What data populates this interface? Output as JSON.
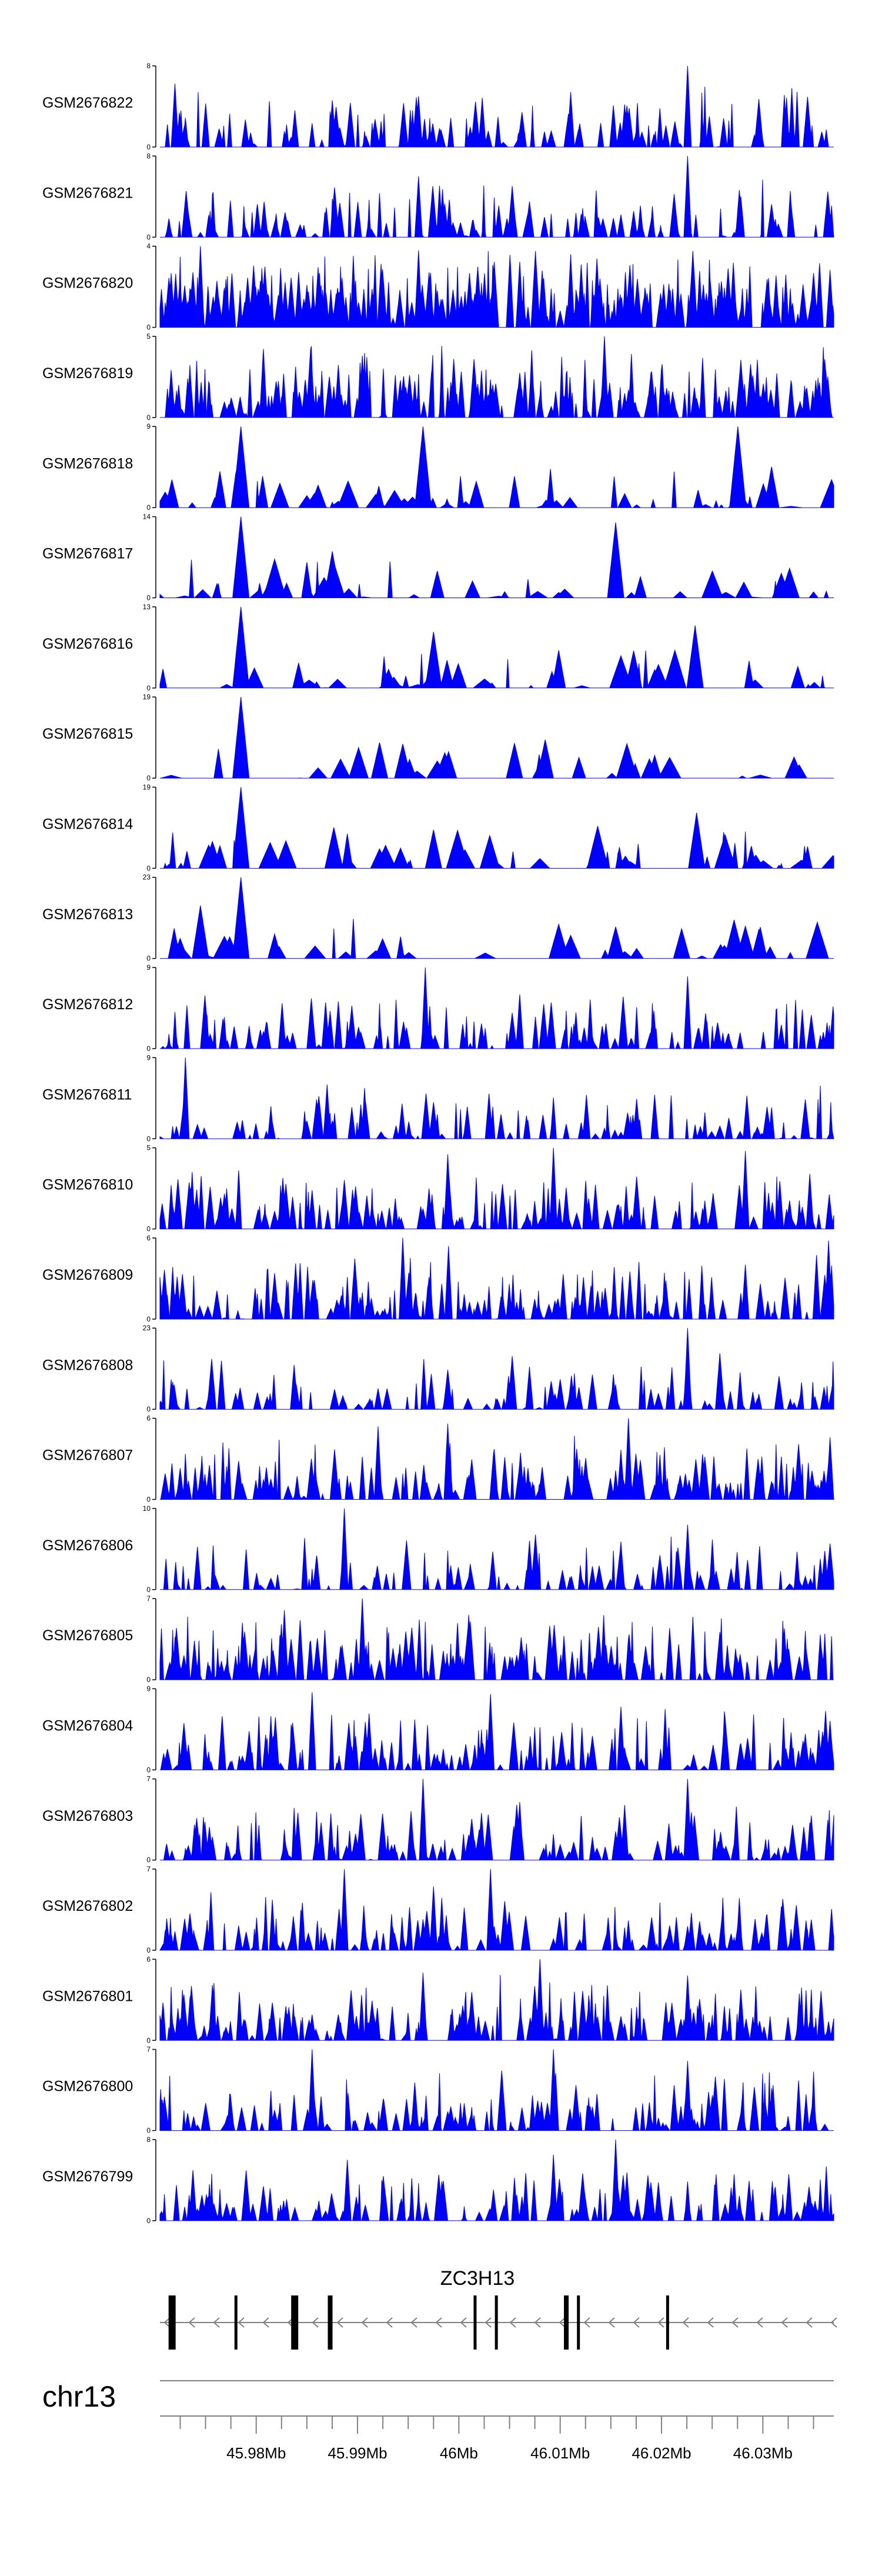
{
  "chart_data": {
    "type": "area",
    "title": "",
    "region": {
      "chromosome": "chr13",
      "start_mb": 45.9705,
      "end_mb": 46.037
    },
    "tracks": [
      {
        "name": "GSM2676822",
        "ymax": "8",
        "ymin": "0",
        "seed": 11,
        "peaks": [
          [
            46.0226,
            8
          ],
          [
            45.996,
            5
          ],
          [
            45.9875,
            4.6
          ]
        ],
        "density": 1.0,
        "base": 0.25
      },
      {
        "name": "GSM2676821",
        "ymax": "8",
        "ymin": "0",
        "seed": 23,
        "peaks": [
          [
            46.0226,
            8
          ],
          [
            45.996,
            6
          ],
          [
            46.0278,
            4
          ]
        ],
        "density": 1.0,
        "base": 0.25
      },
      {
        "name": "GSM2676820",
        "ymax": "4",
        "ymin": "0",
        "seed": 37,
        "peaks": [
          [
            45.9745,
            4
          ],
          [
            45.996,
            3.8
          ],
          [
            46.011,
            3.6
          ]
        ],
        "density": 2.6,
        "base": 0.45
      },
      {
        "name": "GSM2676819",
        "ymax": "5",
        "ymin": "0",
        "seed": 41,
        "peaks": [
          [
            46.0144,
            5
          ],
          [
            45.9905,
            3.8
          ],
          [
            45.9995,
            3.6
          ]
        ],
        "density": 1.9,
        "base": 0.35
      },
      {
        "name": "GSM2676818",
        "ymax": "9",
        "ymin": "0",
        "seed": 53,
        "peaks": [
          [
            45.9785,
            9
          ],
          [
            45.9965,
            9
          ],
          [
            46.0275,
            9
          ]
        ],
        "density": 0.45,
        "base": 0.1
      },
      {
        "name": "GSM2676817",
        "ymax": "14",
        "ymin": "0",
        "seed": 67,
        "peaks": [
          [
            45.9785,
            14
          ],
          [
            46.0155,
            13
          ],
          [
            45.9875,
            8
          ]
        ],
        "density": 0.4,
        "base": 0.08
      },
      {
        "name": "GSM2676816",
        "ymax": "13",
        "ymin": "0",
        "seed": 71,
        "peaks": [
          [
            45.9785,
            13
          ],
          [
            46.0233,
            10
          ],
          [
            45.9975,
            9
          ]
        ],
        "density": 0.4,
        "base": 0.08
      },
      {
        "name": "GSM2676815",
        "ymax": "19",
        "ymin": "0",
        "seed": 83,
        "peaks": [
          [
            45.9785,
            19
          ],
          [
            45.9945,
            8
          ],
          [
            46.0085,
            9
          ]
        ],
        "density": 0.3,
        "base": 0.06
      },
      {
        "name": "GSM2676814",
        "ymax": "19",
        "ymin": "0",
        "seed": 97,
        "peaks": [
          [
            45.9785,
            19
          ],
          [
            46.0235,
            13
          ],
          [
            45.9975,
            9
          ]
        ],
        "density": 0.5,
        "base": 0.1
      },
      {
        "name": "GSM2676813",
        "ymax": "23",
        "ymin": "0",
        "seed": 103,
        "peaks": [
          [
            45.9785,
            23
          ],
          [
            45.9745,
            15
          ],
          [
            46.0155,
            9
          ]
        ],
        "density": 0.35,
        "base": 0.06
      },
      {
        "name": "GSM2676812",
        "ymax": "9",
        "ymin": "0",
        "seed": 113,
        "peaks": [
          [
            45.9967,
            9
          ],
          [
            46.0226,
            8
          ],
          [
            46.006,
            6
          ]
        ],
        "density": 1.1,
        "base": 0.2
      },
      {
        "name": "GSM2676811",
        "ymax": "9",
        "ymin": "0",
        "seed": 127,
        "peaks": [
          [
            45.973,
            9
          ],
          [
            45.987,
            6
          ],
          [
            46.003,
            5
          ]
        ],
        "density": 0.9,
        "base": 0.15
      },
      {
        "name": "GSM2676810",
        "ymax": "5",
        "ymin": "0",
        "seed": 131,
        "peaks": [
          [
            46.0093,
            5
          ],
          [
            46.0283,
            4.8
          ],
          [
            45.9989,
            4.6
          ]
        ],
        "density": 1.4,
        "base": 0.25
      },
      {
        "name": "GSM2676809",
        "ymax": "6",
        "ymin": "0",
        "seed": 139,
        "peaks": [
          [
            45.9945,
            6
          ],
          [
            46.0365,
            5.8
          ],
          [
            45.999,
            5.4
          ]
        ],
        "density": 1.4,
        "base": 0.25
      },
      {
        "name": "GSM2676808",
        "ymax": "23",
        "ymin": "0",
        "seed": 151,
        "peaks": [
          [
            46.0226,
            23
          ],
          [
            46.007,
            12
          ],
          [
            45.9973,
            10
          ]
        ],
        "density": 0.9,
        "base": 0.15
      },
      {
        "name": "GSM2676807",
        "ymax": "6",
        "ymin": "0",
        "seed": 163,
        "peaks": [
          [
            46.0167,
            6
          ],
          [
            45.9989,
            5.6
          ],
          [
            45.992,
            5.4
          ]
        ],
        "density": 1.5,
        "base": 0.25
      },
      {
        "name": "GSM2676806",
        "ymax": "10",
        "ymin": "0",
        "seed": 173,
        "peaks": [
          [
            45.9887,
            10
          ],
          [
            46.0226,
            8
          ],
          [
            46.007,
            6
          ]
        ],
        "density": 0.9,
        "base": 0.15
      },
      {
        "name": "GSM2676805",
        "ymax": "7",
        "ymin": "0",
        "seed": 181,
        "peaks": [
          [
            45.9905,
            7
          ],
          [
            45.9828,
            6
          ],
          [
            46.001,
            5.6
          ]
        ],
        "density": 1.7,
        "base": 0.3
      },
      {
        "name": "GSM2676804",
        "ymax": "9",
        "ymin": "0",
        "seed": 193,
        "peaks": [
          [
            45.9855,
            8.6
          ],
          [
            46.0031,
            8.4
          ],
          [
            46.016,
            7
          ]
        ],
        "density": 1.3,
        "base": 0.22
      },
      {
        "name": "GSM2676803",
        "ymax": "7",
        "ymin": "0",
        "seed": 199,
        "peaks": [
          [
            45.9965,
            7
          ],
          [
            46.0226,
            7
          ],
          [
            46.006,
            5
          ]
        ],
        "density": 1.2,
        "base": 0.2
      },
      {
        "name": "GSM2676802",
        "ymax": "7",
        "ymin": "0",
        "seed": 211,
        "peaks": [
          [
            45.9887,
            7
          ],
          [
            46.0031,
            7
          ],
          [
            45.9975,
            5.5
          ]
        ],
        "density": 1.1,
        "base": 0.2
      },
      {
        "name": "GSM2676801",
        "ymax": "6",
        "ymin": "0",
        "seed": 223,
        "peaks": [
          [
            46.008,
            6
          ],
          [
            45.9965,
            5
          ],
          [
            46.0226,
            4.8
          ]
        ],
        "density": 1.6,
        "base": 0.28
      },
      {
        "name": "GSM2676800",
        "ymax": "7",
        "ymin": "0",
        "seed": 229,
        "peaks": [
          [
            46.0093,
            7
          ],
          [
            45.9855,
            7
          ],
          [
            46.0226,
            6
          ]
        ],
        "density": 1.2,
        "base": 0.2
      },
      {
        "name": "GSM2676799",
        "ymax": "8",
        "ymin": "0",
        "seed": 241,
        "peaks": [
          [
            46.0155,
            8
          ],
          [
            46.0093,
            6.5
          ],
          [
            45.989,
            6
          ]
        ],
        "density": 1.2,
        "base": 0.2
      }
    ],
    "gene": {
      "name": "ZC3H13",
      "strand": "-",
      "start_mb": 45.9705,
      "end_mb": 46.037,
      "exons": [
        {
          "pos_mb": 45.9717,
          "size": "large"
        },
        {
          "pos_mb": 45.978,
          "size": "small"
        },
        {
          "pos_mb": 45.9838,
          "size": "large"
        },
        {
          "pos_mb": 45.9873,
          "size": "medium"
        },
        {
          "pos_mb": 46.0016,
          "size": "small"
        },
        {
          "pos_mb": 46.0037,
          "size": "small"
        },
        {
          "pos_mb": 46.0106,
          "size": "medium"
        },
        {
          "pos_mb": 46.0118,
          "size": "small"
        },
        {
          "pos_mb": 46.0206,
          "size": "small"
        }
      ]
    },
    "genome_axis": {
      "label": "chr13",
      "tick_labels": [
        "45.98Mb",
        "45.99Mb",
        "46Mb",
        "46.01Mb",
        "46.02Mb",
        "46.03Mb"
      ],
      "tick_values_mb": [
        45.98,
        45.99,
        46.0,
        46.01,
        46.02,
        46.03
      ],
      "minor_tick_step_mb": 0.0025
    },
    "colors": {
      "coverage": "#0000ff",
      "axis": "#000000",
      "gene_line": "#808080",
      "exon": "#000000"
    }
  }
}
